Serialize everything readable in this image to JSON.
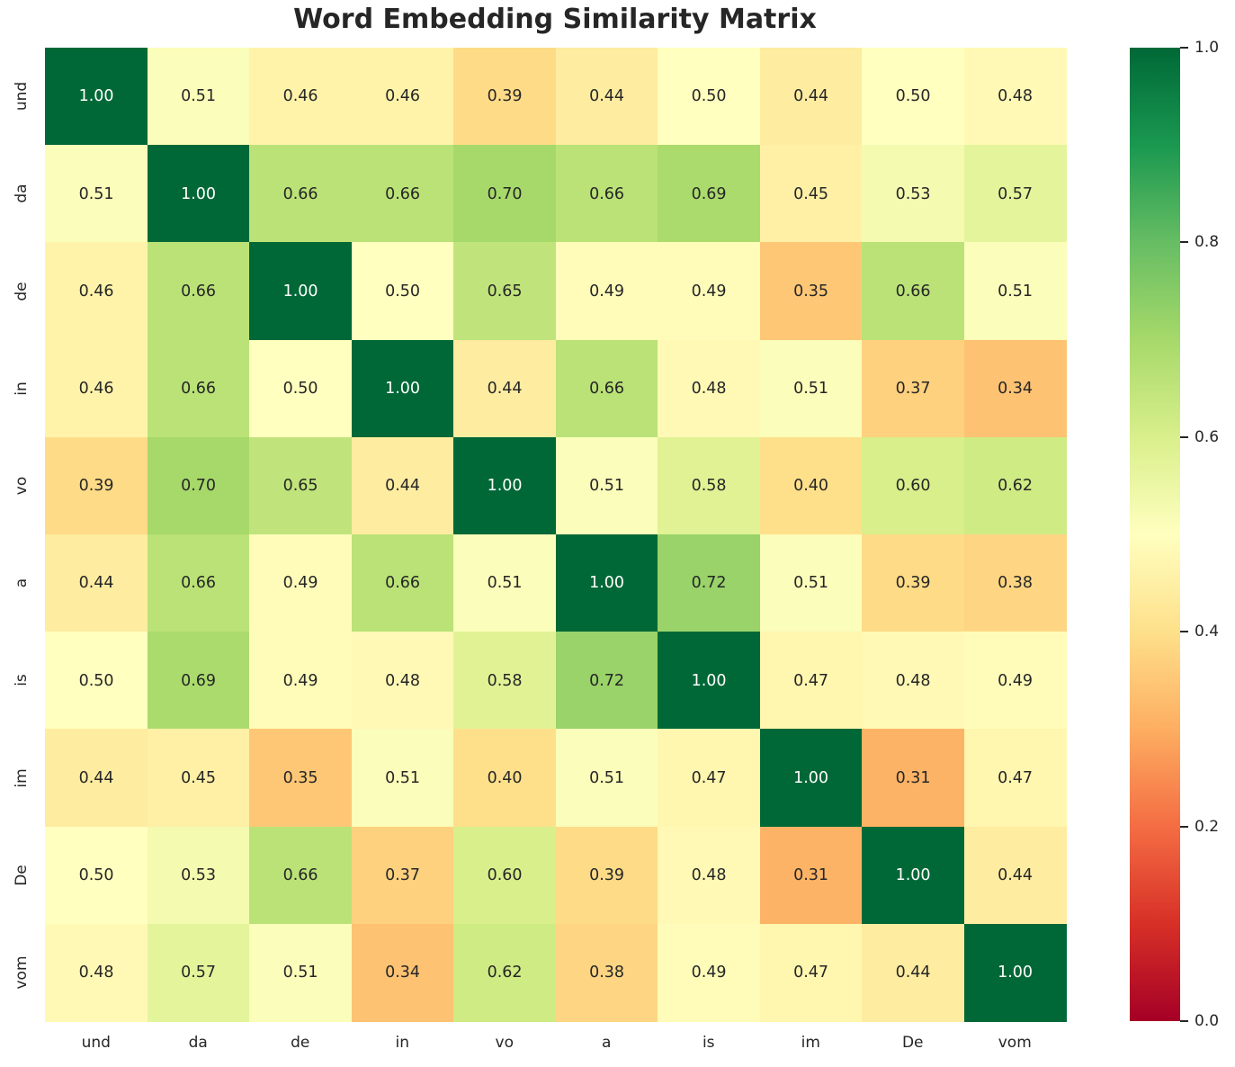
{
  "title": "Word Embedding Similarity Matrix",
  "chart_data": {
    "type": "heatmap",
    "title": "Word Embedding Similarity Matrix",
    "x_labels": [
      "und",
      "da",
      "de",
      "in",
      "vo",
      "a",
      "is",
      "im",
      "De",
      "vom"
    ],
    "y_labels": [
      "und",
      "da",
      "de",
      "in",
      "vo",
      "a",
      "is",
      "im",
      "De",
      "vom"
    ],
    "matrix": [
      [
        1.0,
        0.51,
        0.46,
        0.46,
        0.39,
        0.44,
        0.5,
        0.44,
        0.5,
        0.48
      ],
      [
        0.51,
        1.0,
        0.66,
        0.66,
        0.7,
        0.66,
        0.69,
        0.45,
        0.53,
        0.57
      ],
      [
        0.46,
        0.66,
        1.0,
        0.5,
        0.65,
        0.49,
        0.49,
        0.35,
        0.66,
        0.51
      ],
      [
        0.46,
        0.66,
        0.5,
        1.0,
        0.44,
        0.66,
        0.48,
        0.51,
        0.37,
        0.34
      ],
      [
        0.39,
        0.7,
        0.65,
        0.44,
        1.0,
        0.51,
        0.58,
        0.4,
        0.6,
        0.62
      ],
      [
        0.44,
        0.66,
        0.49,
        0.66,
        0.51,
        1.0,
        0.72,
        0.51,
        0.39,
        0.38
      ],
      [
        0.5,
        0.69,
        0.49,
        0.48,
        0.58,
        0.72,
        1.0,
        0.47,
        0.48,
        0.49
      ],
      [
        0.44,
        0.45,
        0.35,
        0.51,
        0.4,
        0.51,
        0.47,
        1.0,
        0.31,
        0.47
      ],
      [
        0.5,
        0.53,
        0.66,
        0.37,
        0.6,
        0.39,
        0.48,
        0.31,
        1.0,
        0.44
      ],
      [
        0.48,
        0.57,
        0.51,
        0.34,
        0.62,
        0.38,
        0.49,
        0.47,
        0.44,
        1.0
      ]
    ],
    "value_decimals": 2,
    "vmin": 0.0,
    "vmax": 1.0,
    "colormap": "RdYlGn",
    "colormap_anchors": [
      "#a50026",
      "#d73027",
      "#f46d43",
      "#fdae61",
      "#fee08b",
      "#ffffbf",
      "#d9ef8b",
      "#a6d96a",
      "#66bd63",
      "#1a9850",
      "#006837"
    ],
    "annot_color_dark": "#262626",
    "annot_color_light": "#ffffff",
    "legend_position": "right",
    "grid": false,
    "colorbar_ticks": [
      "1.0",
      "0.8",
      "0.6",
      "0.4",
      "0.2",
      "0.0"
    ],
    "colorbar_tick_values": [
      1.0,
      0.8,
      0.6,
      0.4,
      0.2,
      0.0
    ]
  }
}
